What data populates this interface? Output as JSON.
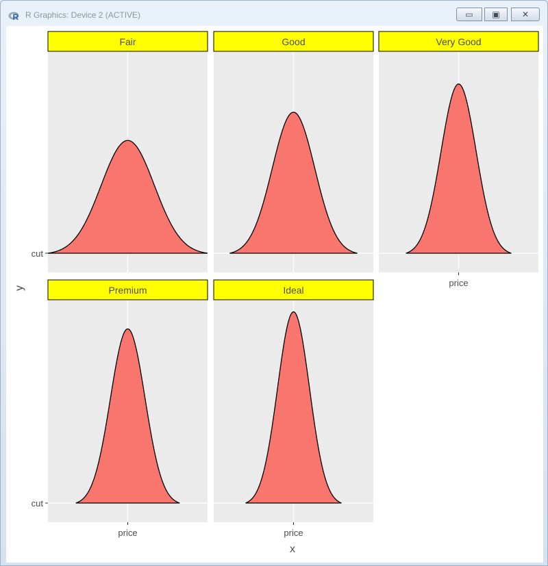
{
  "window": {
    "title": "R Graphics: Device 2 (ACTIVE)",
    "controls": {
      "minimize_icon": "minimize-icon",
      "maximize_icon": "maximize-icon",
      "close_icon": "close-icon"
    }
  },
  "colors": {
    "panel_background": "#ebebeb",
    "strip_fill": "#ffff00",
    "density_fill": "#f8766d",
    "grid": "#ffffff"
  },
  "chart_data": {
    "type": "area",
    "facet_by": "cut",
    "xlabel": "x",
    "ylabel": "y",
    "x_tick_label": "price",
    "y_tick_label": "cut",
    "panels": [
      {
        "name": "Fair",
        "peak": 0.6,
        "spread": 1.0
      },
      {
        "name": "Good",
        "peak": 0.75,
        "spread": 0.8
      },
      {
        "name": "Very Good",
        "peak": 0.9,
        "spread": 0.66
      },
      {
        "name": "Premium",
        "peak": 0.92,
        "spread": 0.65
      },
      {
        "name": "Ideal",
        "peak": 1.01,
        "spread": 0.6
      }
    ],
    "ylim": [
      0,
      1.07
    ],
    "grid": true,
    "legend": "none"
  }
}
